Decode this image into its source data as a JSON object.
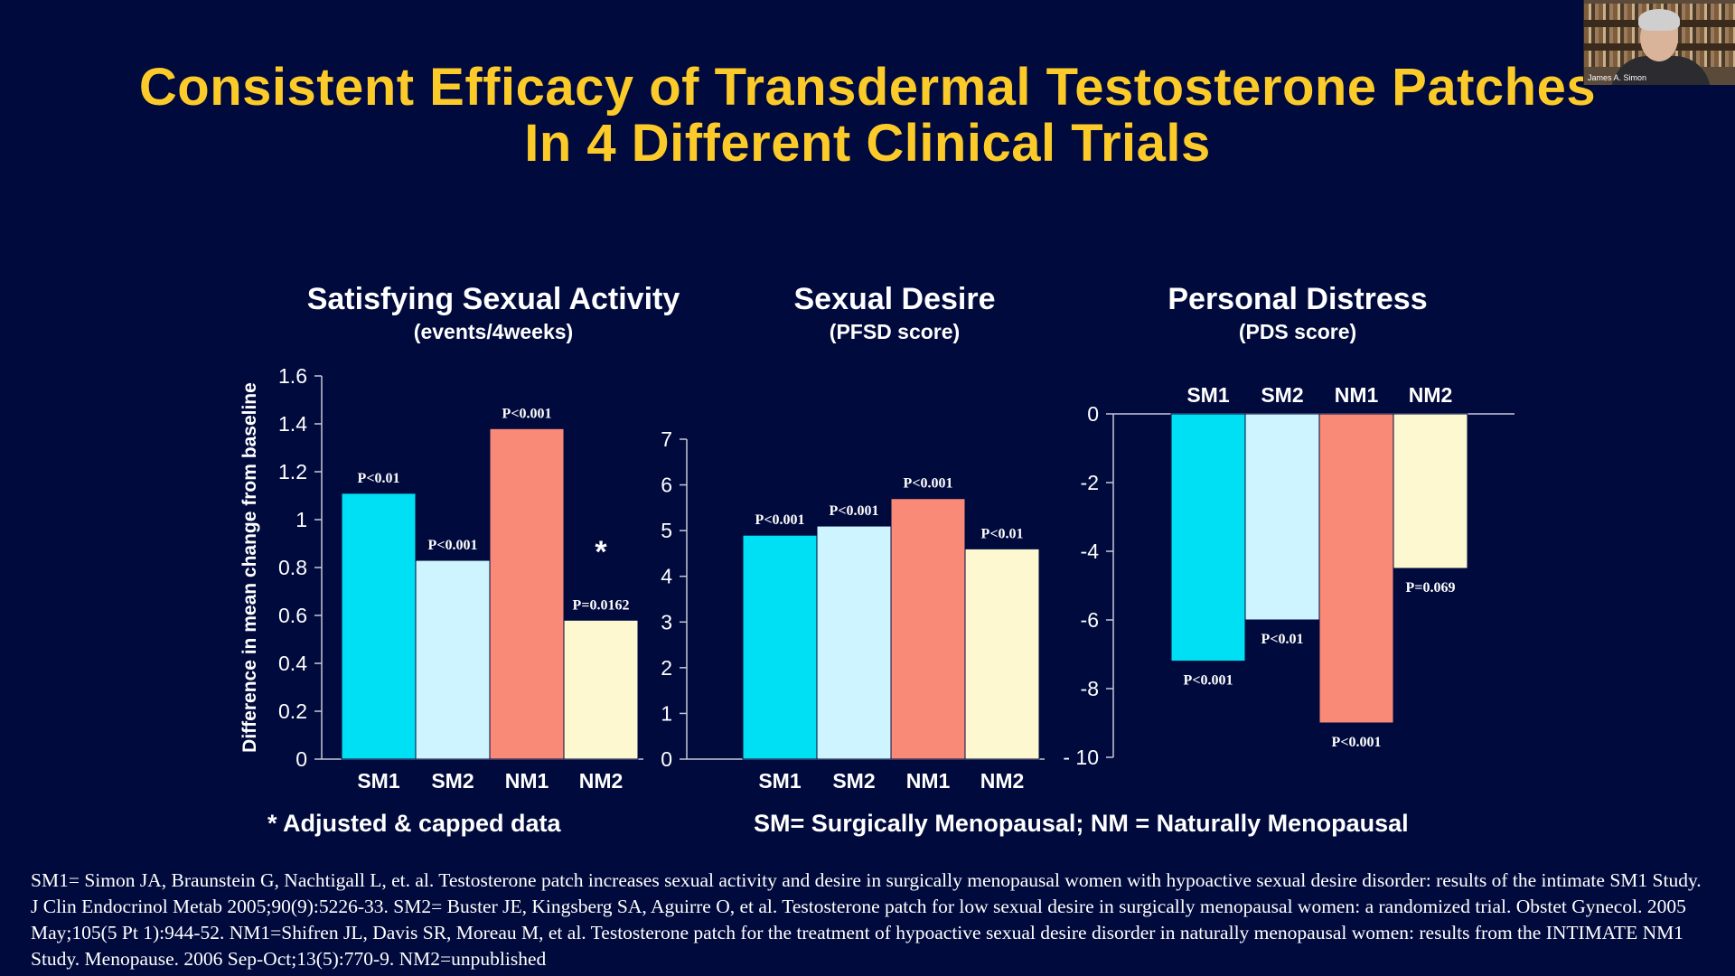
{
  "slide": {
    "title_line1": "Consistent Efficacy of Transdermal Testosterone Patches",
    "title_line2": "In 4 Different Clinical Trials",
    "footnote_adjusted": "* Adjusted & capped data",
    "footnote_legend": "SM= Surgically Menopausal; NM = Naturally Menopausal",
    "references": "SM1= Simon JA, Braunstein G, Nachtigall L, et. al. Testosterone patch increases sexual activity and desire in surgically menopausal women with hypoactive sexual desire disorder: results of the intimate SM1 Study. J Clin Endocrinol Metab 2005;90(9):5226-33. SM2= Buster JE, Kingsberg SA, Aguirre O, et al. Testosterone patch for low sexual desire in surgically menopausal women: a randomized trial. Obstet Gynecol. 2005 May;105(5 Pt 1):944-52. NM1=Shifren JL, Davis SR, Moreau M, et al. Testosterone patch for the treatment of hypoactive sexual desire disorder in naturally menopausal women: results from the INTIMATE NM1 Study. Menopause. 2006 Sep-Oct;13(5):770-9. NM2=unpublished"
  },
  "webcam": {
    "name": "James A. Simon"
  },
  "colors": {
    "SM1": "#00e0f4",
    "SM2": "#cdf4ff",
    "NM1": "#fa8a78",
    "NM2": "#fdf8cf",
    "background": "#000a3c",
    "title": "#fccb2a"
  },
  "chart_data": [
    {
      "type": "bar",
      "title": "Satisfying Sexual Activity",
      "subtitle": "(events/4weeks)",
      "ylabel": "Difference in mean change from baseline",
      "categories": [
        "SM1",
        "SM2",
        "NM1",
        "NM2"
      ],
      "values": [
        1.11,
        0.83,
        1.38,
        0.58
      ],
      "annotations": [
        "P<0.01",
        "P<0.001",
        "P<0.001",
        "P=0.0162"
      ],
      "marker": {
        "category": "NM2",
        "text": "*"
      },
      "ylim": [
        0,
        1.6
      ],
      "yticks": [
        0,
        0.2,
        0.4,
        0.6,
        0.8,
        1,
        1.2,
        1.4,
        1.6
      ],
      "ytick_labels": [
        "0",
        "0.2",
        "0.4",
        "0.6",
        "0.8",
        "1",
        "1.2",
        "1.4",
        "1.6"
      ]
    },
    {
      "type": "bar",
      "title": "Sexual Desire",
      "subtitle": "(PFSD score)",
      "categories": [
        "SM1",
        "SM2",
        "NM1",
        "NM2"
      ],
      "values": [
        4.9,
        5.1,
        5.7,
        4.6
      ],
      "annotations": [
        "P<0.001",
        "P<0.001",
        "P<0.001",
        "P<0.01"
      ],
      "ylim": [
        0,
        7
      ],
      "yticks": [
        0,
        1,
        2,
        3,
        4,
        5,
        6,
        7
      ],
      "ytick_labels": [
        "0",
        "1",
        "2",
        "3",
        "4",
        "5",
        "6",
        "7"
      ]
    },
    {
      "type": "bar",
      "title": "Personal Distress",
      "subtitle": "(PDS score)",
      "categories": [
        "SM1",
        "SM2",
        "NM1",
        "NM2"
      ],
      "values": [
        -7.2,
        -6.0,
        -9.0,
        -4.5
      ],
      "annotations": [
        "P<0.001",
        "P<0.01",
        "P<0.001",
        "P=0.069"
      ],
      "ylim": [
        -10,
        0
      ],
      "yticks": [
        0,
        -2,
        -4,
        -6,
        -8,
        -10
      ],
      "ytick_labels": [
        "0",
        "-2",
        "-4",
        "-6",
        "-8",
        "- 10"
      ]
    }
  ]
}
